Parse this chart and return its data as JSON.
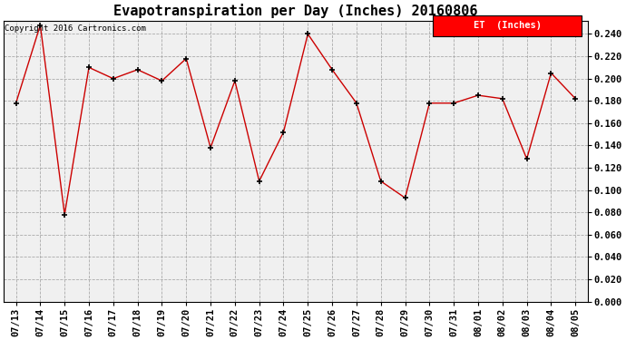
{
  "title": "Evapotranspiration per Day (Inches) 20160806",
  "copyright": "Copyright 2016 Cartronics.com",
  "legend_label": "ET  (Inches)",
  "legend_bg": "#ff0000",
  "legend_fg": "#ffffff",
  "x_labels": [
    "07/13",
    "07/14",
    "07/15",
    "07/16",
    "07/17",
    "07/18",
    "07/19",
    "07/20",
    "07/21",
    "07/22",
    "07/23",
    "07/24",
    "07/25",
    "07/26",
    "07/27",
    "07/28",
    "07/29",
    "07/30",
    "07/31",
    "08/01",
    "08/02",
    "08/03",
    "08/04",
    "08/05"
  ],
  "y_values": [
    0.178,
    0.248,
    0.078,
    0.21,
    0.2,
    0.208,
    0.198,
    0.218,
    0.138,
    0.198,
    0.108,
    0.152,
    0.24,
    0.208,
    0.178,
    0.108,
    0.093,
    0.178,
    0.178,
    0.185,
    0.182,
    0.128,
    0.205,
    0.182
  ],
  "ylim": [
    0.0,
    0.252
  ],
  "yticks": [
    0.0,
    0.02,
    0.04,
    0.06,
    0.08,
    0.1,
    0.12,
    0.14,
    0.16,
    0.18,
    0.2,
    0.22,
    0.24
  ],
  "line_color": "#cc0000",
  "marker": "+",
  "marker_color": "#000000",
  "bg_color": "#ffffff",
  "plot_bg_color": "#f0f0f0",
  "grid_color": "#aaaaaa",
  "title_fontsize": 11,
  "tick_fontsize": 7.5,
  "copyright_fontsize": 6.5
}
